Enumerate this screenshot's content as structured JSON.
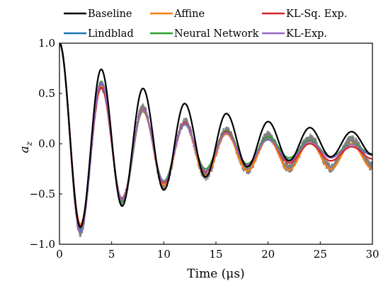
{
  "chart_data": {
    "type": "line",
    "xlabel": "Time (μs)",
    "ylabel": "a_z",
    "xlim": [
      0,
      30
    ],
    "ylim": [
      -1.0,
      1.0
    ],
    "xticks": [
      "0",
      "5",
      "10",
      "15",
      "20",
      "25",
      "30"
    ],
    "yticks": [
      "−1.0",
      "−0.5",
      "0.0",
      "0.5",
      "1.0"
    ],
    "grid": false,
    "legend_position": "top, outside plot area (3 columns)",
    "period_us": 4.0,
    "measured_noise_amplitude": 0.05,
    "measured": {
      "color": "#808080",
      "note": "noisy measured signal (no legend entry)",
      "points": [
        [
          0,
          1.0
        ],
        [
          2,
          -0.88
        ],
        [
          4,
          0.58
        ],
        [
          6,
          -0.57
        ],
        [
          8,
          0.36
        ],
        [
          10,
          -0.42
        ],
        [
          12,
          0.22
        ],
        [
          14,
          -0.32
        ],
        [
          16,
          0.13
        ],
        [
          18,
          -0.26
        ],
        [
          20,
          0.08
        ],
        [
          22,
          -0.24
        ],
        [
          24,
          0.06
        ],
        [
          26,
          -0.24
        ],
        [
          28,
          0.04
        ],
        [
          30,
          -0.22
        ]
      ]
    },
    "series": [
      {
        "name": "Baseline",
        "color": "#000000",
        "points": [
          [
            0,
            1.0
          ],
          [
            2,
            -0.83
          ],
          [
            4,
            0.74
          ],
          [
            6,
            -0.62
          ],
          [
            8,
            0.55
          ],
          [
            10,
            -0.46
          ],
          [
            12,
            0.4
          ],
          [
            14,
            -0.33
          ],
          [
            16,
            0.3
          ],
          [
            18,
            -0.23
          ],
          [
            20,
            0.22
          ],
          [
            22,
            -0.17
          ],
          [
            24,
            0.16
          ],
          [
            26,
            -0.13
          ],
          [
            28,
            0.12
          ],
          [
            30,
            -0.11
          ]
        ]
      },
      {
        "name": "Affine",
        "color": "#ff7f0e",
        "points": [
          [
            0,
            1.0
          ],
          [
            2,
            -0.8
          ],
          [
            4,
            0.57
          ],
          [
            6,
            -0.55
          ],
          [
            8,
            0.33
          ],
          [
            10,
            -0.41
          ],
          [
            12,
            0.2
          ],
          [
            14,
            -0.32
          ],
          [
            16,
            0.1
          ],
          [
            18,
            -0.27
          ],
          [
            20,
            0.05
          ],
          [
            22,
            -0.26
          ],
          [
            24,
            0.02
          ],
          [
            26,
            -0.25
          ],
          [
            28,
            0.0
          ],
          [
            30,
            -0.25
          ]
        ]
      },
      {
        "name": "KL-Sq. Exp.",
        "color": "#d62728",
        "points": [
          [
            0,
            1.0
          ],
          [
            2,
            -0.82
          ],
          [
            4,
            0.56
          ],
          [
            6,
            -0.55
          ],
          [
            8,
            0.34
          ],
          [
            10,
            -0.39
          ],
          [
            12,
            0.21
          ],
          [
            14,
            -0.28
          ],
          [
            16,
            0.12
          ],
          [
            18,
            -0.22
          ],
          [
            20,
            0.05
          ],
          [
            22,
            -0.19
          ],
          [
            24,
            0.0
          ],
          [
            26,
            -0.17
          ],
          [
            28,
            -0.03
          ],
          [
            30,
            -0.15
          ]
        ]
      },
      {
        "name": "Lindblad",
        "color": "#1f77b4",
        "points": [
          [
            0,
            1.0
          ],
          [
            2,
            -0.86
          ],
          [
            4,
            0.6
          ],
          [
            6,
            -0.56
          ],
          [
            8,
            0.33
          ],
          [
            10,
            -0.39
          ],
          [
            12,
            0.19
          ],
          [
            14,
            -0.27
          ],
          [
            16,
            0.1
          ],
          [
            18,
            -0.2
          ],
          [
            20,
            0.04
          ],
          [
            22,
            -0.16
          ],
          [
            24,
            0.0
          ],
          [
            26,
            -0.13
          ],
          [
            28,
            -0.03
          ],
          [
            30,
            -0.11
          ]
        ]
      },
      {
        "name": "Neural Network",
        "color": "#2ca02c",
        "points": [
          [
            0,
            1.0
          ],
          [
            2,
            -0.84
          ],
          [
            4,
            0.62
          ],
          [
            6,
            -0.58
          ],
          [
            8,
            0.32
          ],
          [
            10,
            -0.37
          ],
          [
            12,
            0.2
          ],
          [
            14,
            -0.25
          ],
          [
            16,
            0.13
          ],
          [
            18,
            -0.2
          ],
          [
            20,
            0.07
          ],
          [
            22,
            -0.14
          ],
          [
            24,
            0.03
          ],
          [
            26,
            -0.13
          ],
          [
            28,
            0.0
          ],
          [
            30,
            -0.1
          ]
        ]
      },
      {
        "name": "KL-Exp.",
        "color": "#9467bd",
        "points": [
          [
            0,
            1.0
          ],
          [
            2,
            -0.88
          ],
          [
            4,
            0.61
          ],
          [
            6,
            -0.56
          ],
          [
            8,
            0.34
          ],
          [
            10,
            -0.38
          ],
          [
            12,
            0.2
          ],
          [
            14,
            -0.27
          ],
          [
            16,
            0.11
          ],
          [
            18,
            -0.21
          ],
          [
            20,
            0.05
          ],
          [
            22,
            -0.17
          ],
          [
            24,
            0.02
          ],
          [
            26,
            -0.14
          ],
          [
            28,
            -0.01
          ],
          [
            30,
            -0.11
          ]
        ]
      }
    ]
  }
}
